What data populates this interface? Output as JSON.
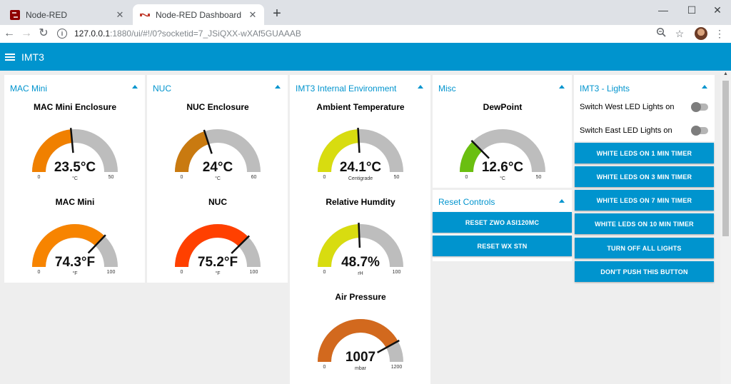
{
  "browser": {
    "tabs": [
      {
        "title": "Node-RED",
        "active": false
      },
      {
        "title": "Node-RED Dashboard",
        "active": true
      }
    ],
    "url_host": "127.0.0.1",
    "url_path": ":1880/ui/#!/0?socketid=7_JSiQXX-wXAf5GUAAAB"
  },
  "header": {
    "title": "IMT3"
  },
  "groups": {
    "mac": {
      "title": "MAC Mini",
      "gauges": [
        {
          "title": "MAC Mini Enclosure",
          "value": 23.5,
          "display": "23.5°C",
          "units": "°C",
          "min": 0,
          "max": 50,
          "min_label": "0",
          "max_label": "50",
          "color": "#f08000"
        },
        {
          "title": "MAC Mini",
          "value": 74.3,
          "display": "74.3°F",
          "units": "°F",
          "min": 0,
          "max": 100,
          "min_label": "0",
          "max_label": "100",
          "color": "#f78400"
        }
      ]
    },
    "nuc": {
      "title": "NUC",
      "gauges": [
        {
          "title": "NUC Enclosure",
          "value": 24,
          "display": "24°C",
          "units": "°C",
          "min": 0,
          "max": 60,
          "min_label": "0",
          "max_label": "60",
          "color": "#c97a10"
        },
        {
          "title": "NUC",
          "value": 75.2,
          "display": "75.2°F",
          "units": "°F",
          "min": 0,
          "max": 100,
          "min_label": "0",
          "max_label": "100",
          "color": "#ff4000"
        }
      ]
    },
    "env": {
      "title": "IMT3 Internal Environment",
      "gauges": [
        {
          "title": "Ambient Temperature",
          "value": 24.1,
          "display": "24.1°C",
          "units": "Centigrade",
          "min": 0,
          "max": 50,
          "min_label": "0",
          "max_label": "50",
          "color": "#d8dc10"
        },
        {
          "title": "Relative Humdity",
          "value": 48.7,
          "display": "48.7%",
          "units": "rH",
          "min": 0,
          "max": 100,
          "min_label": "0",
          "max_label": "100",
          "color": "#d8dc10"
        },
        {
          "title": "Air Pressure",
          "value": 1007,
          "display": "1007",
          "units": "mbar",
          "min": 0,
          "max": 1200,
          "min_label": "0",
          "max_label": "1200",
          "color": "#d2691e"
        }
      ]
    },
    "misc": {
      "title": "Misc",
      "gauges": [
        {
          "title": "DewPoint",
          "value": 12.6,
          "display": "12.6°C",
          "units": "°C",
          "min": 0,
          "max": 50,
          "min_label": "0",
          "max_label": "50",
          "color": "#6abf10"
        }
      ]
    },
    "reset": {
      "title": "Reset Controls",
      "buttons": [
        "RESET ZWO ASI120MC",
        "RESET WX STN"
      ]
    },
    "lights": {
      "title": "IMT3 - Lights",
      "switches": [
        {
          "label": "Switch West LED Lights on",
          "on": false
        },
        {
          "label": "Switch East LED Lights on",
          "on": false
        }
      ],
      "buttons": [
        "WHITE LEDS ON 1 MIN TIMER",
        "WHITE LEDS ON 3 MIN TIMER",
        "WHITE LEDS ON 7 MIN TIMER",
        "WHITE LEDS ON 10 MIN TIMER",
        "TURN OFF ALL LIGHTS",
        "DON'T PUSH THIS BUTTON"
      ]
    }
  },
  "colors": {
    "accent": "#0094ce",
    "gauge_track": "#bdbdbd"
  }
}
